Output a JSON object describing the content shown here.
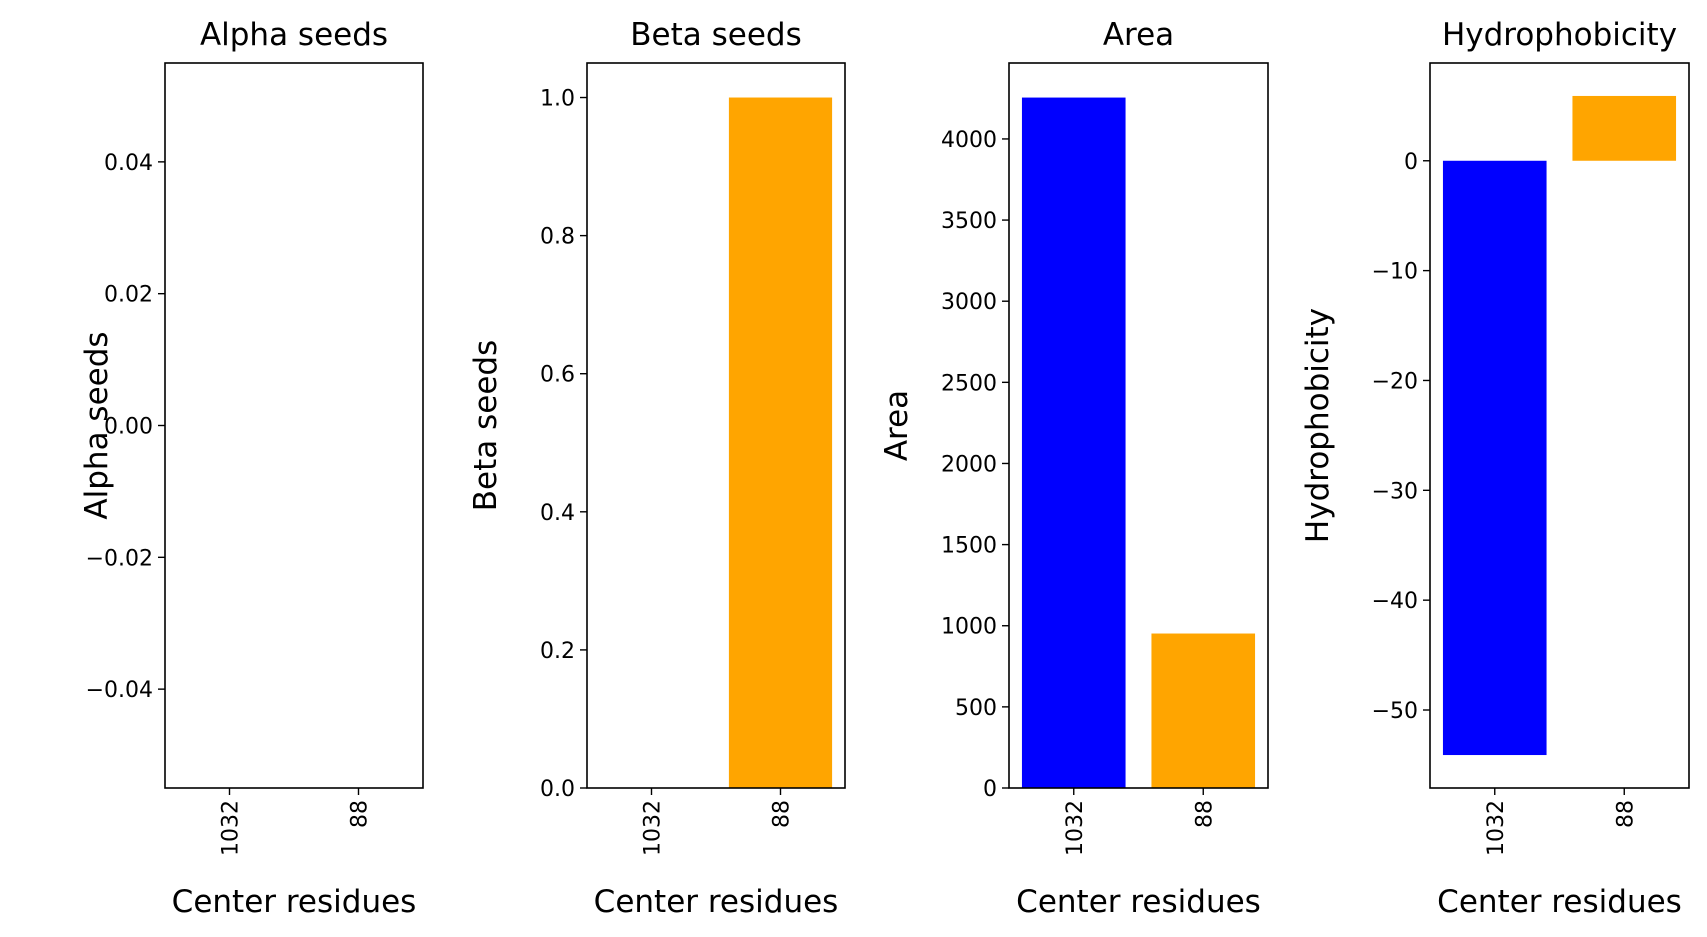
{
  "chart_data": [
    {
      "type": "bar",
      "title": "Alpha seeds",
      "xlabel": "Center residues",
      "ylabel": "Alpha seeds",
      "categories": [
        "1032",
        "88"
      ],
      "values": [
        0,
        0
      ],
      "colors": [
        "#0000ff",
        "#ffa500"
      ],
      "ylim": [
        -0.055,
        0.055
      ],
      "yticks": [
        -0.04,
        -0.02,
        0.0,
        0.02,
        0.04
      ],
      "ytick_labels": [
        "−0.04",
        "−0.02",
        "0.00",
        "0.02",
        "0.04"
      ],
      "grid": false
    },
    {
      "type": "bar",
      "title": "Beta seeds",
      "xlabel": "Center residues",
      "ylabel": "Beta seeds",
      "categories": [
        "1032",
        "88"
      ],
      "values": [
        0,
        1.0
      ],
      "colors": [
        "#0000ff",
        "#ffa500"
      ],
      "ylim": [
        0,
        1.05
      ],
      "yticks": [
        0.0,
        0.2,
        0.4,
        0.6,
        0.8,
        1.0
      ],
      "ytick_labels": [
        "0.0",
        "0.2",
        "0.4",
        "0.6",
        "0.8",
        "1.0"
      ],
      "grid": false
    },
    {
      "type": "bar",
      "title": "Area",
      "xlabel": "Center residues",
      "ylabel": "Area",
      "categories": [
        "1032",
        "88"
      ],
      "values": [
        4255,
        952
      ],
      "colors": [
        "#0000ff",
        "#ffa500"
      ],
      "ylim": [
        0,
        4468
      ],
      "yticks": [
        0,
        500,
        1000,
        1500,
        2000,
        2500,
        3000,
        3500,
        4000
      ],
      "ytick_labels": [
        "0",
        "500",
        "1000",
        "1500",
        "2000",
        "2500",
        "3000",
        "3500",
        "4000"
      ],
      "grid": false
    },
    {
      "type": "bar",
      "title": "Hydrophobicity",
      "xlabel": "Center residues",
      "ylabel": "Hydrophobicity",
      "categories": [
        "1032",
        "88"
      ],
      "values": [
        -54.1,
        5.9
      ],
      "colors": [
        "#0000ff",
        "#ffa500"
      ],
      "ylim": [
        -57.1,
        8.9
      ],
      "yticks": [
        -50,
        -40,
        -30,
        -20,
        -10,
        0
      ],
      "ytick_labels": [
        "−50",
        "−40",
        "−30",
        "−20",
        "−10",
        "0"
      ],
      "grid": false
    }
  ]
}
